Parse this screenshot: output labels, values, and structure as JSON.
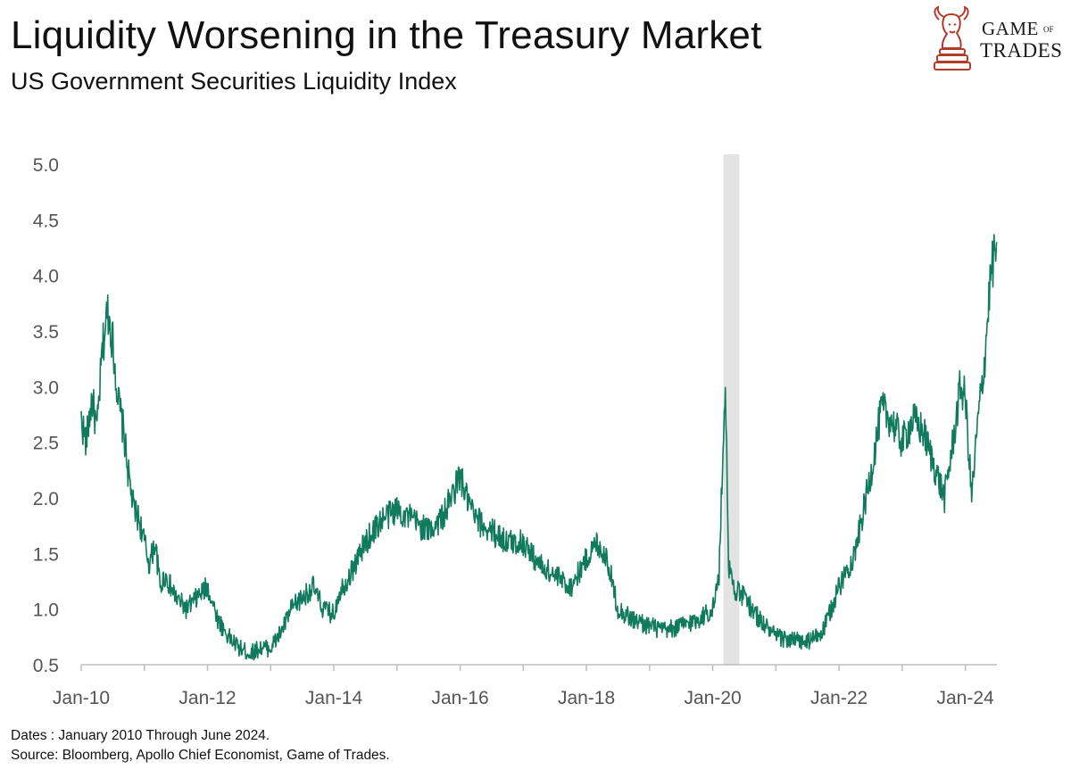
{
  "title": "Liquidity Worsening in the Treasury Market",
  "subtitle": "US Government Securities Liquidity Index",
  "logo": {
    "line1": "GAME",
    "line2": "OF",
    "line3": "TRADES",
    "accent": "#b33a2b"
  },
  "notes": {
    "dates": "Dates : January 2010 Through June 2024.",
    "source": "Source: Bloomberg, Apollo Chief Economist, Game of Trades."
  },
  "colors": {
    "line": "#0f7a5c",
    "shade": "#e3e3e3",
    "axis": "#bdbdbd",
    "tick_text": "#555555"
  },
  "chart_data": {
    "type": "line",
    "title": "US Government Securities Liquidity Index",
    "xlabel": "",
    "ylabel": "",
    "xlim": [
      2010.0,
      2024.5
    ],
    "ylim": [
      0.5,
      5.0
    ],
    "grid": false,
    "y_ticks": [
      "0.5",
      "1.0",
      "1.5",
      "2.0",
      "2.5",
      "3.0",
      "3.5",
      "4.0",
      "4.5",
      "5.0"
    ],
    "x_ticks": [
      {
        "label": "Jan-10",
        "x": 2010
      },
      {
        "label": "Jan-12",
        "x": 2012
      },
      {
        "label": "Jan-14",
        "x": 2014
      },
      {
        "label": "Jan-16",
        "x": 2016
      },
      {
        "label": "Jan-18",
        "x": 2018
      },
      {
        "label": "Jan-20",
        "x": 2020
      },
      {
        "label": "Jan-22",
        "x": 2022
      },
      {
        "label": "Jan-24",
        "x": 2024
      }
    ],
    "shaded_region": {
      "x_start": 2020.17,
      "x_end": 2020.42
    },
    "series": [
      {
        "name": "US Government Securities Liquidity Index",
        "x": [
          2010.0,
          2010.08,
          2010.17,
          2010.25,
          2010.33,
          2010.42,
          2010.5,
          2010.58,
          2010.67,
          2010.75,
          2010.83,
          2010.92,
          2011.0,
          2011.08,
          2011.17,
          2011.25,
          2011.33,
          2011.5,
          2011.67,
          2011.83,
          2012.0,
          2012.17,
          2012.33,
          2012.5,
          2012.67,
          2012.83,
          2013.0,
          2013.17,
          2013.33,
          2013.5,
          2013.67,
          2013.83,
          2014.0,
          2014.08,
          2014.25,
          2014.5,
          2014.75,
          2015.0,
          2015.25,
          2015.5,
          2015.75,
          2016.0,
          2016.1,
          2016.25,
          2016.5,
          2016.75,
          2017.0,
          2017.25,
          2017.5,
          2017.75,
          2018.0,
          2018.17,
          2018.33,
          2018.5,
          2018.75,
          2019.0,
          2019.25,
          2019.5,
          2019.75,
          2020.0,
          2020.1,
          2020.2,
          2020.25,
          2020.33,
          2020.5,
          2020.75,
          2021.0,
          2021.25,
          2021.5,
          2021.75,
          2022.0,
          2022.25,
          2022.5,
          2022.67,
          2022.83,
          2023.0,
          2023.17,
          2023.33,
          2023.5,
          2023.67,
          2023.83,
          2023.92,
          2024.0,
          2024.1,
          2024.2,
          2024.3,
          2024.4,
          2024.5
        ],
        "values": [
          2.7,
          2.5,
          2.9,
          2.6,
          3.3,
          3.7,
          3.4,
          2.9,
          2.6,
          2.2,
          1.9,
          1.8,
          1.6,
          1.4,
          1.6,
          1.2,
          1.3,
          1.1,
          1.0,
          1.1,
          1.2,
          0.9,
          0.75,
          0.65,
          0.6,
          0.65,
          0.65,
          0.8,
          1.0,
          1.1,
          1.2,
          1.0,
          0.95,
          1.15,
          1.3,
          1.6,
          1.8,
          1.9,
          1.8,
          1.7,
          1.85,
          2.2,
          2.0,
          1.8,
          1.7,
          1.6,
          1.6,
          1.4,
          1.3,
          1.2,
          1.45,
          1.6,
          1.45,
          1.0,
          0.9,
          0.85,
          0.8,
          0.85,
          0.9,
          1.0,
          1.3,
          3.1,
          1.4,
          1.2,
          1.1,
          0.9,
          0.75,
          0.72,
          0.7,
          0.8,
          1.2,
          1.5,
          2.2,
          2.8,
          2.7,
          2.5,
          2.7,
          2.6,
          2.3,
          2.0,
          2.6,
          3.0,
          2.9,
          2.0,
          2.7,
          3.2,
          4.0,
          4.3
        ]
      }
    ]
  }
}
